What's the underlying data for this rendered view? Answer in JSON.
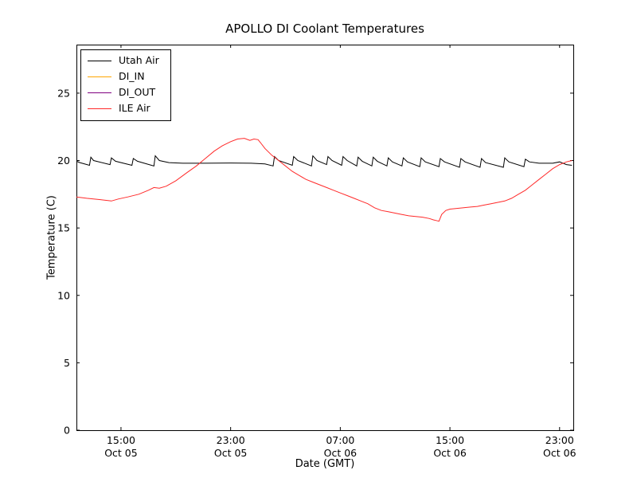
{
  "chart_data": {
    "type": "line",
    "title": "APOLLO DI Coolant Temperatures",
    "xlabel": "Date (GMT)",
    "ylabel": "Temperature (C)",
    "x_unit": "hours since Oct 05 00:00 GMT",
    "xlim": [
      11.75,
      48.0
    ],
    "ylim": [
      0,
      28.6
    ],
    "yticks": [
      0,
      5,
      10,
      15,
      20,
      25
    ],
    "xticks": [
      {
        "value": 15,
        "label": "15:00",
        "sublabel": "Oct 05"
      },
      {
        "value": 23,
        "label": "23:00",
        "sublabel": "Oct 05"
      },
      {
        "value": 31,
        "label": "07:00",
        "sublabel": "Oct 06"
      },
      {
        "value": 39,
        "label": "15:00",
        "sublabel": "Oct 06"
      },
      {
        "value": 47,
        "label": "23:00",
        "sublabel": "Oct 06"
      }
    ],
    "legend_position": "upper-left",
    "grid": false,
    "series": [
      {
        "name": "Utah Air",
        "color": "#000000",
        "points": [
          [
            11.75,
            19.95
          ],
          [
            12.0,
            19.85
          ],
          [
            12.7,
            19.65
          ],
          [
            12.8,
            20.25
          ],
          [
            13.0,
            20.0
          ],
          [
            14.2,
            19.7
          ],
          [
            14.3,
            20.2
          ],
          [
            14.6,
            19.95
          ],
          [
            15.8,
            19.65
          ],
          [
            15.9,
            20.15
          ],
          [
            16.2,
            19.95
          ],
          [
            17.4,
            19.6
          ],
          [
            17.5,
            20.35
          ],
          [
            17.8,
            20.0
          ],
          [
            18.5,
            19.85
          ],
          [
            19.5,
            19.8
          ],
          [
            21.0,
            19.8
          ],
          [
            23.0,
            19.82
          ],
          [
            24.5,
            19.8
          ],
          [
            25.5,
            19.75
          ],
          [
            26.1,
            19.6
          ],
          [
            26.2,
            20.3
          ],
          [
            26.5,
            20.0
          ],
          [
            27.5,
            19.65
          ],
          [
            27.6,
            20.3
          ],
          [
            27.9,
            20.0
          ],
          [
            28.9,
            19.6
          ],
          [
            29.0,
            20.35
          ],
          [
            29.3,
            20.0
          ],
          [
            30.0,
            19.7
          ],
          [
            30.1,
            20.3
          ],
          [
            30.4,
            20.0
          ],
          [
            31.1,
            19.65
          ],
          [
            31.2,
            20.3
          ],
          [
            31.5,
            20.0
          ],
          [
            32.2,
            19.6
          ],
          [
            32.3,
            20.25
          ],
          [
            32.6,
            19.95
          ],
          [
            33.3,
            19.6
          ],
          [
            33.4,
            20.25
          ],
          [
            33.7,
            19.95
          ],
          [
            34.4,
            19.6
          ],
          [
            34.5,
            20.2
          ],
          [
            34.8,
            19.9
          ],
          [
            35.5,
            19.6
          ],
          [
            35.6,
            20.2
          ],
          [
            35.9,
            19.9
          ],
          [
            36.8,
            19.55
          ],
          [
            36.9,
            20.2
          ],
          [
            37.2,
            19.9
          ],
          [
            38.2,
            19.55
          ],
          [
            38.3,
            20.15
          ],
          [
            38.6,
            19.9
          ],
          [
            39.7,
            19.5
          ],
          [
            39.8,
            20.15
          ],
          [
            40.1,
            19.9
          ],
          [
            41.2,
            19.5
          ],
          [
            41.3,
            20.15
          ],
          [
            41.6,
            19.85
          ],
          [
            42.9,
            19.5
          ],
          [
            43.0,
            20.2
          ],
          [
            43.3,
            19.9
          ],
          [
            44.4,
            19.55
          ],
          [
            44.5,
            20.1
          ],
          [
            44.8,
            19.9
          ],
          [
            45.5,
            19.8
          ],
          [
            46.5,
            19.8
          ],
          [
            47.0,
            19.9
          ],
          [
            47.5,
            19.7
          ],
          [
            47.9,
            19.65
          ]
        ]
      },
      {
        "name": "DI_IN",
        "color": "#ffa500",
        "points": []
      },
      {
        "name": "DI_OUT",
        "color": "#800080",
        "points": []
      },
      {
        "name": "ILE Air",
        "color": "#ff2a2a",
        "points": [
          [
            11.75,
            17.3
          ],
          [
            12.5,
            17.2
          ],
          [
            13.5,
            17.1
          ],
          [
            14.3,
            17.0
          ],
          [
            14.8,
            17.15
          ],
          [
            15.5,
            17.3
          ],
          [
            16.3,
            17.5
          ],
          [
            17.0,
            17.8
          ],
          [
            17.4,
            18.0
          ],
          [
            17.8,
            17.95
          ],
          [
            18.3,
            18.1
          ],
          [
            19.0,
            18.5
          ],
          [
            19.8,
            19.1
          ],
          [
            20.5,
            19.6
          ],
          [
            21.2,
            20.2
          ],
          [
            21.8,
            20.7
          ],
          [
            22.4,
            21.1
          ],
          [
            23.0,
            21.4
          ],
          [
            23.5,
            21.6
          ],
          [
            24.0,
            21.65
          ],
          [
            24.4,
            21.5
          ],
          [
            24.7,
            21.6
          ],
          [
            25.0,
            21.55
          ],
          [
            25.2,
            21.3
          ],
          [
            25.5,
            20.9
          ],
          [
            26.0,
            20.4
          ],
          [
            26.5,
            20.0
          ],
          [
            27.0,
            19.6
          ],
          [
            27.5,
            19.2
          ],
          [
            28.0,
            18.9
          ],
          [
            28.5,
            18.6
          ],
          [
            29.0,
            18.4
          ],
          [
            29.5,
            18.2
          ],
          [
            30.0,
            18.0
          ],
          [
            30.5,
            17.8
          ],
          [
            31.0,
            17.6
          ],
          [
            31.5,
            17.4
          ],
          [
            32.0,
            17.2
          ],
          [
            32.5,
            17.0
          ],
          [
            33.0,
            16.8
          ],
          [
            33.5,
            16.5
          ],
          [
            34.0,
            16.3
          ],
          [
            34.5,
            16.2
          ],
          [
            35.0,
            16.1
          ],
          [
            35.5,
            16.0
          ],
          [
            36.0,
            15.9
          ],
          [
            36.5,
            15.85
          ],
          [
            37.0,
            15.8
          ],
          [
            37.5,
            15.7
          ],
          [
            37.8,
            15.6
          ],
          [
            38.0,
            15.55
          ],
          [
            38.2,
            15.5
          ],
          [
            38.4,
            16.0
          ],
          [
            38.7,
            16.3
          ],
          [
            39.0,
            16.4
          ],
          [
            39.5,
            16.45
          ],
          [
            40.0,
            16.5
          ],
          [
            40.5,
            16.55
          ],
          [
            41.0,
            16.6
          ],
          [
            41.5,
            16.7
          ],
          [
            42.0,
            16.8
          ],
          [
            42.5,
            16.9
          ],
          [
            43.0,
            17.0
          ],
          [
            43.5,
            17.2
          ],
          [
            44.0,
            17.5
          ],
          [
            44.5,
            17.8
          ],
          [
            45.0,
            18.2
          ],
          [
            45.5,
            18.6
          ],
          [
            46.0,
            19.0
          ],
          [
            46.5,
            19.4
          ],
          [
            47.0,
            19.7
          ],
          [
            47.5,
            19.9
          ],
          [
            47.9,
            20.0
          ]
        ]
      }
    ]
  }
}
